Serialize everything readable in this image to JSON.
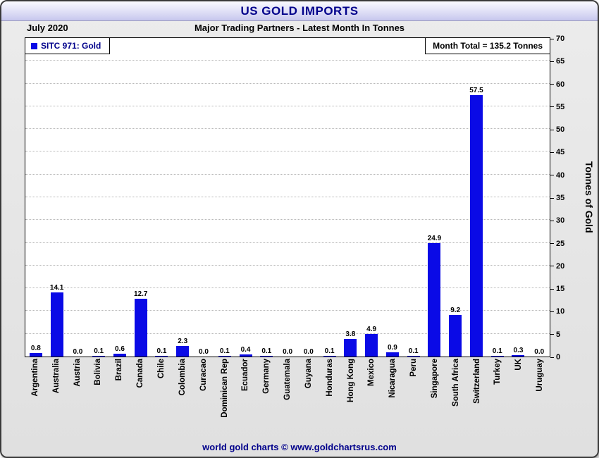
{
  "header": {
    "title": "US GOLD IMPORTS",
    "month": "July 2020",
    "subtitle": "Major Trading Partners - Latest Month In Tonnes"
  },
  "legend": {
    "series_label": "SITC 971: Gold",
    "month_total": "Month Total = 135.2 Tonnes"
  },
  "footer": {
    "credit": "world gold charts © www.goldchartsrus.com"
  },
  "colors": {
    "bar": "#0a0ae6",
    "title_text": "#00008b",
    "gridline": "#b8b8b8"
  },
  "chart_data": {
    "type": "bar",
    "title": "US GOLD IMPORTS",
    "subtitle": "Major Trading Partners - Latest Month In Tonnes",
    "period": "July 2020",
    "month_total_tonnes": 135.2,
    "categories": [
      "Argentina",
      "Australia",
      "Austria",
      "Bolivia",
      "Brazil",
      "Canada",
      "Chile",
      "Colombia",
      "Curacao",
      "Dominican Rep",
      "Ecuador",
      "Germany",
      "Guatemala",
      "Guyana",
      "Honduras",
      "Hong Kong",
      "Mexico",
      "Nicaragua",
      "Peru",
      "Singapore",
      "South Africa",
      "Switzerland",
      "Turkey",
      "UK",
      "Uruguay"
    ],
    "values": [
      0.8,
      14.1,
      0.0,
      0.1,
      0.6,
      12.7,
      0.1,
      2.3,
      0.0,
      0.1,
      0.4,
      0.1,
      0.0,
      0.0,
      0.1,
      3.8,
      4.9,
      0.9,
      0.1,
      24.9,
      9.2,
      57.5,
      0.1,
      0.3,
      0.0
    ],
    "xlabel": "",
    "ylabel": "Tonnes of Gold",
    "ylim": [
      0,
      70
    ],
    "grid_step": 5,
    "grid": true,
    "legend_position": "top-left"
  }
}
